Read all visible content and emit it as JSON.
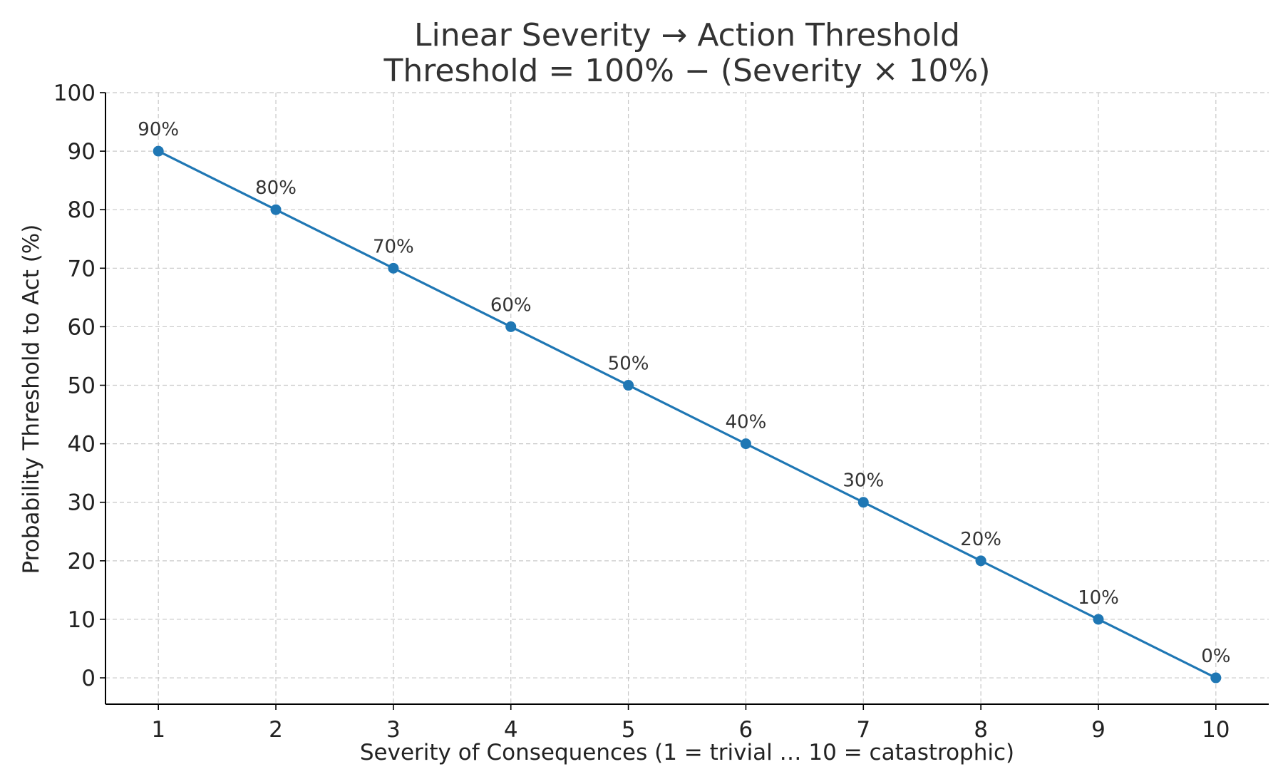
{
  "chart_data": {
    "type": "line",
    "title": "Linear Severity → Action Threshold",
    "subtitle": "Threshold = 100% − (Severity × 10%)",
    "xlabel": "Severity of Consequences (1 = trivial … 10 = catastrophic)",
    "ylabel": "Probability Threshold to Act (%)",
    "x": [
      1,
      2,
      3,
      4,
      5,
      6,
      7,
      8,
      9,
      10
    ],
    "series": [
      {
        "values": [
          90,
          80,
          70,
          60,
          50,
          40,
          30,
          20,
          10,
          0
        ],
        "color": "#1f77b4",
        "marker": "circle"
      }
    ],
    "data_labels": [
      "90%",
      "80%",
      "70%",
      "60%",
      "50%",
      "40%",
      "30%",
      "20%",
      "10%",
      "0%"
    ],
    "xlim": [
      0.55,
      10.45
    ],
    "ylim": [
      -4.5,
      100
    ],
    "xticks": [
      1,
      2,
      3,
      4,
      5,
      6,
      7,
      8,
      9,
      10
    ],
    "yticks": [
      0,
      10,
      20,
      30,
      40,
      50,
      60,
      70,
      80,
      90,
      100
    ],
    "grid": true,
    "legend": "none"
  }
}
